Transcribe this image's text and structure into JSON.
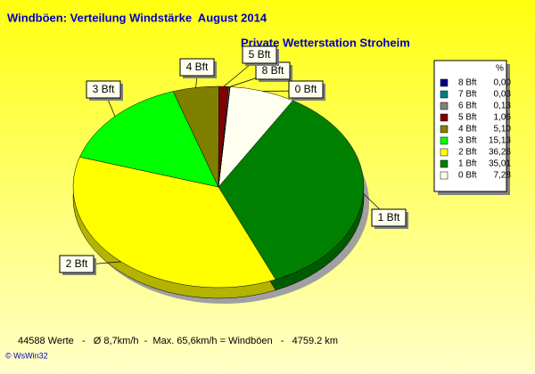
{
  "chart_data": {
    "type": "pie",
    "title": "Windböen: Verteilung Windstärke  August 2014",
    "subtitle": "Private Wetterstation Stroheim",
    "unit": "%",
    "categories": [
      "8 Bft",
      "7 Bft",
      "6 Bft",
      "5 Bft",
      "4 Bft",
      "3 Bft",
      "2 Bft",
      "1 Bft",
      "0 Bft"
    ],
    "values": [
      0,
      0.03,
      0.13,
      1.06,
      5.1,
      15.13,
      36.26,
      35.01,
      7.28
    ],
    "value_labels": [
      "0,00",
      "0,03",
      "0,13",
      "1,06",
      "5,10",
      "15,13",
      "36,26",
      "35,01",
      "7,28"
    ],
    "colors": [
      "#000080",
      "#008080",
      "#808080",
      "#800000",
      "#808000",
      "#00ff00",
      "#ffff00",
      "#008000",
      "#fffff0"
    ],
    "legend": "top-right",
    "footer": "44588 Werte   -   Ø 8,7km/h  -  Max. 65,6km/h = Windböen   -   4759.2 km",
    "credit": "© WsWin32"
  }
}
